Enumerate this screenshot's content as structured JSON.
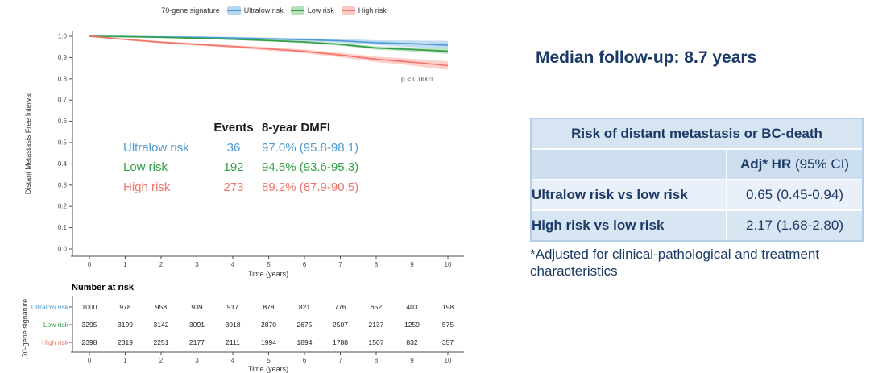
{
  "canvas": {
    "background": "#ffffff"
  },
  "chart_data": {
    "type": "line",
    "subtype": "kaplan-meier",
    "legend_title": "70-gene signature",
    "ylabel": "Distant Metastasis Free Interval",
    "xlabel": "Time (years)",
    "xlim": [
      0,
      10
    ],
    "ylim": [
      0.0,
      1.0
    ],
    "xticks": [
      0,
      1,
      2,
      3,
      4,
      5,
      6,
      7,
      8,
      9,
      10
    ],
    "yticks": [
      0.0,
      0.1,
      0.2,
      0.3,
      0.4,
      0.5,
      0.6,
      0.7,
      0.8,
      0.9,
      1.0
    ],
    "grid": false,
    "legend_position": "top",
    "p_value": "p < 0.0001",
    "series": [
      {
        "name": "Ultralow risk",
        "color": "#4f9ad5",
        "band_color": "#b5d7ef",
        "x": [
          0,
          1,
          2,
          3,
          4,
          5,
          6,
          7,
          8,
          9,
          10
        ],
        "y": [
          1.0,
          0.999,
          0.997,
          0.995,
          0.992,
          0.988,
          0.984,
          0.979,
          0.97,
          0.965,
          0.958
        ],
        "ci_half_width": [
          0.002,
          0.003,
          0.004,
          0.004,
          0.005,
          0.006,
          0.007,
          0.009,
          0.011,
          0.015,
          0.02
        ]
      },
      {
        "name": "Low risk",
        "color": "#33a047",
        "band_color": "#b9e0bd",
        "x": [
          0,
          1,
          2,
          3,
          4,
          5,
          6,
          7,
          8,
          9,
          10
        ],
        "y": [
          1.0,
          0.998,
          0.995,
          0.991,
          0.986,
          0.98,
          0.973,
          0.962,
          0.945,
          0.938,
          0.93
        ],
        "ci_half_width": [
          0.001,
          0.002,
          0.002,
          0.003,
          0.003,
          0.004,
          0.005,
          0.006,
          0.008,
          0.01,
          0.013
        ]
      },
      {
        "name": "High risk",
        "color": "#f4756c",
        "band_color": "#fbc9c3",
        "x": [
          0,
          1,
          2,
          3,
          4,
          5,
          6,
          7,
          8,
          9,
          10
        ],
        "y": [
          1.0,
          0.985,
          0.972,
          0.962,
          0.952,
          0.941,
          0.929,
          0.912,
          0.892,
          0.878,
          0.862
        ],
        "ci_half_width": [
          0.003,
          0.004,
          0.005,
          0.006,
          0.007,
          0.008,
          0.009,
          0.011,
          0.013,
          0.016,
          0.02
        ]
      }
    ],
    "annotation_table": {
      "col_headers": [
        "Events",
        "8-year DMFI"
      ],
      "rows": [
        {
          "label": "Ultralow risk",
          "events": "36",
          "dmfi": "97.0% (95.8-98.1)",
          "color": "#4f9ad5"
        },
        {
          "label": "Low risk",
          "events": "192",
          "dmfi": "94.5% (93.6-95.3)",
          "color": "#33a047"
        },
        {
          "label": "High risk",
          "events": "273",
          "dmfi": "89.2% (87.9-90.5)",
          "color": "#f4756c"
        }
      ]
    },
    "risk_table": {
      "title": "Number at risk",
      "ylabel": "70-gene signature",
      "xlabel": "Time (years)",
      "x": [
        0,
        1,
        2,
        3,
        4,
        5,
        6,
        7,
        8,
        9,
        10
      ],
      "rows": [
        {
          "label": "Ultralow risk",
          "color": "#4f9ad5",
          "counts": [
            1000,
            978,
            958,
            939,
            917,
            878,
            821,
            776,
            652,
            403,
            198
          ]
        },
        {
          "label": "Low risk",
          "color": "#33a047",
          "counts": [
            3295,
            3199,
            3142,
            3091,
            3018,
            2870,
            2675,
            2507,
            2137,
            1259,
            575
          ]
        },
        {
          "label": "High risk",
          "color": "#f4756c",
          "counts": [
            2398,
            2319,
            2251,
            2177,
            2111,
            1994,
            1894,
            1788,
            1507,
            832,
            357
          ]
        }
      ]
    }
  },
  "side_panel": {
    "title": "Median follow-up: 8.7 years",
    "accent_color": "#1b3a66",
    "hr_table": {
      "header": "Risk of distant metastasis or BC-death",
      "col_header_bold": "Adj* HR",
      "col_header_rest": " (95% CI)",
      "rows": [
        {
          "label": "Ultralow risk vs low risk",
          "value": "0.65 (0.45-0.94)"
        },
        {
          "label": "High risk vs low risk",
          "value": "2.17 (1.68-2.80)"
        }
      ]
    },
    "footnote": "*Adjusted for clinical-pathological and treatment characteristics"
  }
}
